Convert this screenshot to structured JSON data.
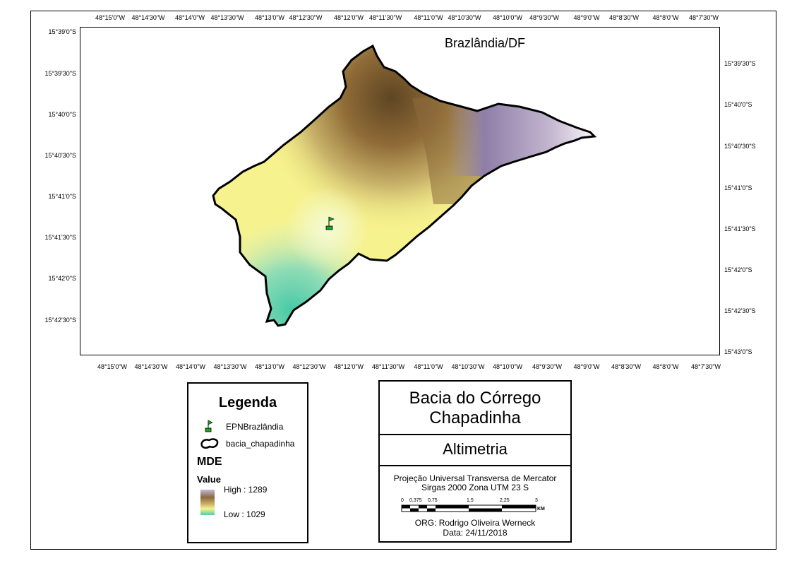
{
  "map": {
    "place_label": "Brazlândia/DF",
    "longitude_ticks": [
      "48°15'0\"W",
      "48°14'30\"W",
      "48°14'0\"W",
      "48°13'30\"W",
      "48°13'0\"W",
      "48°12'30\"W",
      "48°12'0\"W",
      "48°11'30\"W",
      "48°11'0\"W",
      "48°10'30\"W",
      "48°10'0\"W",
      "48°9'30\"W",
      "48°9'0\"W",
      "48°8'30\"W",
      "48°8'0\"W",
      "48°7'30\"W"
    ],
    "latitude_ticks_left": [
      "15°39'0\"S",
      "15°39'30\"S",
      "15°40'0\"S",
      "15°40'30\"S",
      "15°41'0\"S",
      "15°41'30\"S",
      "15°42'0\"S",
      "15°42'30\"S"
    ],
    "latitude_ticks_right": [
      "15°39'30\"S",
      "15°40'0\"S",
      "15°40'30\"S",
      "15°41'0\"S",
      "15°41'30\"S",
      "15°42'0\"S",
      "15°42'30\"S",
      "15°43'0\"S"
    ],
    "colors": {
      "high": "#8e7fa8",
      "mid_high": "#7a5a2c",
      "mid": "#f7f48a",
      "low": "#4ecda7",
      "outline": "#000000",
      "marker": "#1aa81a"
    }
  },
  "legend": {
    "title": "Legenda",
    "point_layer": "EPNBrazlândia",
    "polygon_layer": "bacia_chapadinha",
    "raster_title": "MDE",
    "value_label": "Value",
    "high": "High : 1289",
    "low": "Low : 1029",
    "icons": {
      "point": "flag-icon",
      "polygon": "polygon-outline-icon"
    }
  },
  "title_block": {
    "title": "Bacia do Córrego Chapadinha",
    "subtitle": "Altimetria",
    "projection": "Projeção Universal Transversa de Mercator",
    "datum": "Sirgas 2000 Zona UTM 23  S",
    "scale_labels": [
      "0",
      "0,375",
      "0,75",
      "1,5",
      "2,25",
      "3"
    ],
    "scale_unit": "KM",
    "author": "ORG: Rodrigo Oliveira Werneck",
    "date": "Data: 24/11/2018"
  }
}
